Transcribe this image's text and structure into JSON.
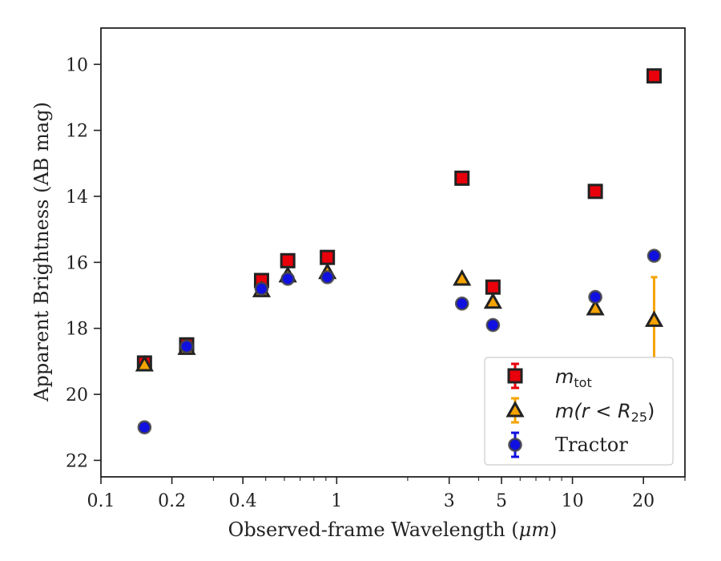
{
  "chart_data": {
    "type": "scatter",
    "title": "",
    "xlabel_text": "Observed-frame Wavelength (",
    "xlabel_unit": "μm",
    "xlabel_close": ")",
    "ylabel": "Apparent Brightness (AB mag)",
    "xscale": "log",
    "xlim": [
      0.1,
      30
    ],
    "ylim": [
      22.5,
      8.9
    ],
    "y_inverted": true,
    "x_ticks": [
      {
        "value": 0.1,
        "label": "0.1"
      },
      {
        "value": 0.2,
        "label": "0.2"
      },
      {
        "value": 0.4,
        "label": "0.4"
      },
      {
        "value": 1,
        "label": "1"
      },
      {
        "value": 3,
        "label": "3"
      },
      {
        "value": 5,
        "label": "5"
      },
      {
        "value": 10,
        "label": "10"
      },
      {
        "value": 20,
        "label": "20"
      }
    ],
    "x_minor_ticks": [
      0.3,
      0.5,
      0.6,
      0.7,
      0.8,
      0.9,
      2,
      4,
      6,
      7,
      8,
      9,
      30
    ],
    "y_ticks": [
      {
        "value": 10,
        "label": "10"
      },
      {
        "value": 12,
        "label": "12"
      },
      {
        "value": 14,
        "label": "14"
      },
      {
        "value": 16,
        "label": "16"
      },
      {
        "value": 18,
        "label": "18"
      },
      {
        "value": 20,
        "label": "20"
      },
      {
        "value": 22,
        "label": "22"
      }
    ],
    "legend_position": "lower-right",
    "series": [
      {
        "key": "mtot",
        "marker": "square",
        "color": "#e8000b",
        "edge": "#222222",
        "legend_main": "m",
        "legend_sub": "tot",
        "points": [
          {
            "x": 0.153,
            "y": 19.05,
            "err": 0.05
          },
          {
            "x": 0.231,
            "y": 18.5,
            "err": 0.05
          },
          {
            "x": 0.48,
            "y": 16.55,
            "err": 0.05
          },
          {
            "x": 0.62,
            "y": 15.95,
            "err": 0.05
          },
          {
            "x": 0.913,
            "y": 15.85,
            "err": 0.05
          },
          {
            "x": 3.4,
            "y": 13.45,
            "err": 0.05
          },
          {
            "x": 4.6,
            "y": 16.75,
            "err": 0.05
          },
          {
            "x": 12.5,
            "y": 13.85,
            "err": 0.05
          },
          {
            "x": 22.2,
            "y": 10.35,
            "err": 0.05
          }
        ]
      },
      {
        "key": "mr25",
        "marker": "triangle",
        "color": "#f5a300",
        "edge": "#222222",
        "legend_main": "m(r < R",
        "legend_sub": "25",
        "legend_close": ")",
        "points": [
          {
            "x": 0.153,
            "y": 19.1,
            "err": 0.05
          },
          {
            "x": 0.231,
            "y": 18.6,
            "err": 0.05
          },
          {
            "x": 0.48,
            "y": 16.85,
            "err": 0.05
          },
          {
            "x": 0.62,
            "y": 16.4,
            "err": 0.05
          },
          {
            "x": 0.913,
            "y": 16.3,
            "err": 0.05
          },
          {
            "x": 3.4,
            "y": 16.5,
            "err": 0.05
          },
          {
            "x": 4.6,
            "y": 17.2,
            "err": 0.05
          },
          {
            "x": 12.5,
            "y": 17.4,
            "err": 0.05
          },
          {
            "x": 22.2,
            "y": 17.75,
            "err": 1.3
          }
        ]
      },
      {
        "key": "tractor",
        "marker": "circle",
        "color": "#1010e0",
        "edge": "#444444",
        "legend_main": "Tractor",
        "points": [
          {
            "x": 0.153,
            "y": 21.0,
            "err": 0.05
          },
          {
            "x": 0.231,
            "y": 18.55,
            "err": 0.05
          },
          {
            "x": 0.48,
            "y": 16.8,
            "err": 0.05
          },
          {
            "x": 0.62,
            "y": 16.5,
            "err": 0.05
          },
          {
            "x": 0.913,
            "y": 16.45,
            "err": 0.05
          },
          {
            "x": 3.4,
            "y": 17.25,
            "err": 0.05
          },
          {
            "x": 4.6,
            "y": 17.9,
            "err": 0.05
          },
          {
            "x": 12.5,
            "y": 17.05,
            "err": 0.05
          },
          {
            "x": 22.2,
            "y": 15.8,
            "err": 0.05
          }
        ]
      }
    ]
  }
}
